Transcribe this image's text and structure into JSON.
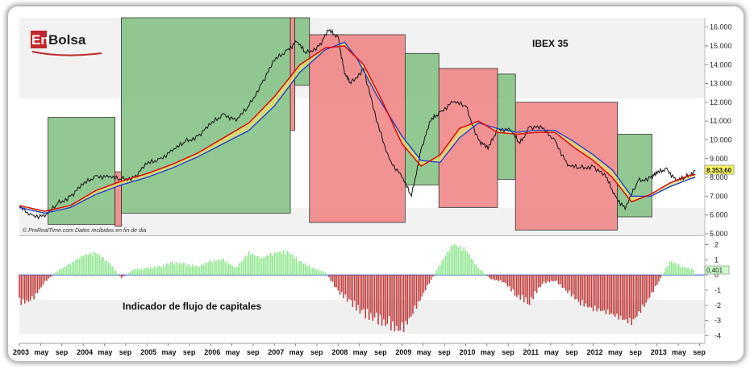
{
  "title": "IBEX 35",
  "logo": {
    "text_en": "En",
    "text_bolsa": "Bolsa"
  },
  "source_note": "© ProRealTime.com  Datos recibidos en fin de dia",
  "indicator_label": "Indicador de flujo de capitales",
  "last_value_label": "8.353,60",
  "indicator_value_label": "0,401",
  "colors": {
    "price": "#111111",
    "ma_red": "#e00000",
    "ma_blue": "#2040d0",
    "bull_zone": "#7fbf7f",
    "bear_zone": "#f08080",
    "fill_yellow": "#e8e070",
    "fill_grey": "#a08080",
    "hist_pos": "#90e890",
    "hist_neg": "#c04040",
    "zero_line": "#3050e0"
  },
  "chart_data": [
    {
      "type": "line",
      "title": "IBEX 35",
      "ylim": [
        5000,
        16500
      ],
      "y_ticks": [
        "5.000",
        "6.000",
        "7.000",
        "8.000",
        "9.000",
        "10.000",
        "11.000",
        "12.000",
        "13.000",
        "14.000",
        "15.000",
        "16.000"
      ],
      "x_ticks": [
        "2003",
        "may",
        "sep",
        "2004",
        "may",
        "sep",
        "2005",
        "may",
        "sep",
        "2006",
        "may",
        "sep",
        "2007",
        "may",
        "sep",
        "2008",
        "may",
        "sep",
        "2009",
        "may",
        "sep",
        "2010",
        "may",
        "sep",
        "2011",
        "may",
        "sep",
        "2012",
        "may",
        "sep",
        "2013",
        "may",
        "sep"
      ],
      "x_range": [
        2003.0,
        2013.75
      ],
      "series": [
        {
          "name": "IBEX 35",
          "x": [
            2003.0,
            2003.2,
            2003.4,
            2003.6,
            2003.8,
            2004.0,
            2004.2,
            2004.4,
            2004.6,
            2004.8,
            2005.0,
            2005.2,
            2005.4,
            2005.6,
            2005.8,
            2006.0,
            2006.2,
            2006.4,
            2006.6,
            2006.8,
            2007.0,
            2007.2,
            2007.35,
            2007.5,
            2007.7,
            2007.85,
            2008.0,
            2008.1,
            2008.2,
            2008.4,
            2008.6,
            2008.8,
            2009.0,
            2009.15,
            2009.3,
            2009.45,
            2009.6,
            2009.8,
            2010.0,
            2010.2,
            2010.35,
            2010.5,
            2010.7,
            2010.85,
            2011.0,
            2011.2,
            2011.4,
            2011.6,
            2011.8,
            2012.0,
            2012.2,
            2012.35,
            2012.5,
            2012.7,
            2012.9,
            2013.0,
            2013.15,
            2013.3,
            2013.45,
            2013.6
          ],
          "values": [
            6400,
            6000,
            5900,
            6600,
            7000,
            7600,
            8100,
            8000,
            7900,
            8000,
            8700,
            9000,
            9400,
            9900,
            10200,
            10800,
            11400,
            11000,
            11800,
            13000,
            14200,
            14800,
            15200,
            14600,
            15000,
            15800,
            15500,
            13500,
            13000,
            13800,
            11000,
            9000,
            8000,
            7000,
            9500,
            11000,
            11500,
            12000,
            11800,
            10000,
            9500,
            10600,
            10500,
            9800,
            10700,
            10600,
            10000,
            8600,
            8500,
            8600,
            8000,
            7000,
            6300,
            7800,
            8000,
            8200,
            8500,
            7800,
            8000,
            8353.6
          ]
        },
        {
          "name": "MA-red",
          "x": [
            2003.0,
            2003.4,
            2003.8,
            2004.2,
            2004.6,
            2005.0,
            2005.4,
            2005.8,
            2006.2,
            2006.6,
            2007.0,
            2007.4,
            2007.8,
            2008.1,
            2008.4,
            2008.7,
            2009.0,
            2009.3,
            2009.6,
            2009.9,
            2010.2,
            2010.5,
            2010.8,
            2011.1,
            2011.4,
            2011.7,
            2012.0,
            2012.3,
            2012.6,
            2012.9,
            2013.2,
            2013.5,
            2013.6
          ],
          "values": [
            6500,
            6200,
            6500,
            7300,
            7800,
            8200,
            8700,
            9300,
            10100,
            10900,
            12300,
            14000,
            14900,
            15000,
            14000,
            12000,
            9800,
            8600,
            9200,
            10600,
            11000,
            10400,
            10300,
            10400,
            10400,
            9600,
            8900,
            8000,
            6700,
            7100,
            7700,
            8100,
            8150
          ]
        },
        {
          "name": "MA-blue",
          "x": [
            2003.0,
            2003.4,
            2003.8,
            2004.2,
            2004.6,
            2005.0,
            2005.4,
            2005.8,
            2006.2,
            2006.6,
            2007.0,
            2007.4,
            2007.8,
            2008.1,
            2008.3,
            2008.6,
            2009.0,
            2009.3,
            2009.6,
            2009.9,
            2010.2,
            2010.5,
            2010.8,
            2011.1,
            2011.4,
            2011.7,
            2012.0,
            2012.3,
            2012.6,
            2012.9,
            2013.2,
            2013.5,
            2013.6
          ],
          "values": [
            6400,
            6100,
            6400,
            7100,
            7600,
            8000,
            8500,
            9100,
            9800,
            10500,
            11800,
            13600,
            14800,
            15200,
            14300,
            12400,
            10200,
            8900,
            8800,
            10100,
            10900,
            10600,
            10400,
            10500,
            10500,
            9900,
            9200,
            8400,
            7000,
            7000,
            7500,
            7900,
            8000
          ]
        }
      ],
      "zones": [
        {
          "kind": "bull",
          "x": [
            2003.45,
            2004.5
          ],
          "y": [
            5500,
            11200
          ]
        },
        {
          "kind": "bear",
          "x": [
            2004.5,
            2004.6
          ],
          "y": [
            5400,
            8300
          ]
        },
        {
          "kind": "bull",
          "x": [
            2004.6,
            2007.25
          ],
          "y": [
            6100,
            16500
          ]
        },
        {
          "kind": "bear",
          "x": [
            2007.25,
            2007.32
          ],
          "y": [
            10500,
            16500
          ]
        },
        {
          "kind": "bull",
          "x": [
            2007.32,
            2007.55
          ],
          "y": [
            12900,
            16500
          ]
        },
        {
          "kind": "bear",
          "x": [
            2007.55,
            2009.05
          ],
          "y": [
            5600,
            15600
          ]
        },
        {
          "kind": "bull",
          "x": [
            2009.05,
            2009.58
          ],
          "y": [
            7600,
            14600
          ]
        },
        {
          "kind": "bear",
          "x": [
            2009.58,
            2010.5
          ],
          "y": [
            6400,
            13800
          ]
        },
        {
          "kind": "bull",
          "x": [
            2010.5,
            2010.78
          ],
          "y": [
            7900,
            13500
          ]
        },
        {
          "kind": "bear",
          "x": [
            2010.78,
            2012.38
          ],
          "y": [
            5200,
            12000
          ]
        },
        {
          "kind": "bull",
          "x": [
            2012.38,
            2012.92
          ],
          "y": [
            5900,
            10300
          ]
        }
      ]
    },
    {
      "type": "bar",
      "title": "Indicador de flujo de capitales",
      "ylim": [
        -4.5,
        2.5
      ],
      "y_ticks": [
        "2",
        "1",
        "0",
        "-1",
        "-2",
        "-3",
        "-4"
      ],
      "x": [
        2003.0,
        2003.2,
        2003.4,
        2003.6,
        2003.8,
        2004.0,
        2004.2,
        2004.4,
        2004.6,
        2004.8,
        2005.0,
        2005.2,
        2005.4,
        2005.6,
        2005.8,
        2006.0,
        2006.2,
        2006.4,
        2006.6,
        2006.8,
        2007.0,
        2007.2,
        2007.4,
        2007.6,
        2007.8,
        2008.0,
        2008.2,
        2008.4,
        2008.6,
        2008.8,
        2009.0,
        2009.2,
        2009.4,
        2009.6,
        2009.8,
        2010.0,
        2010.2,
        2010.4,
        2010.6,
        2010.8,
        2011.0,
        2011.2,
        2011.4,
        2011.6,
        2011.8,
        2012.0,
        2012.2,
        2012.4,
        2012.6,
        2012.8,
        2013.0,
        2013.2,
        2013.4,
        2013.6
      ],
      "values": [
        -2.0,
        -1.8,
        -0.5,
        0.3,
        0.8,
        1.4,
        1.6,
        0.9,
        -0.2,
        0.4,
        0.5,
        0.6,
        0.9,
        0.8,
        0.6,
        1.0,
        1.1,
        0.5,
        1.6,
        1.2,
        1.6,
        1.7,
        1.0,
        0.5,
        0.2,
        -1.2,
        -2.0,
        -2.8,
        -3.2,
        -3.6,
        -4.0,
        -2.5,
        -0.8,
        0.8,
        2.2,
        1.8,
        0.5,
        -0.3,
        -0.5,
        -1.5,
        -2.0,
        -0.6,
        -0.4,
        -1.2,
        -2.0,
        -2.4,
        -2.6,
        -3.0,
        -3.4,
        -2.2,
        -0.7,
        1.0,
        0.6,
        0.4
      ]
    }
  ]
}
